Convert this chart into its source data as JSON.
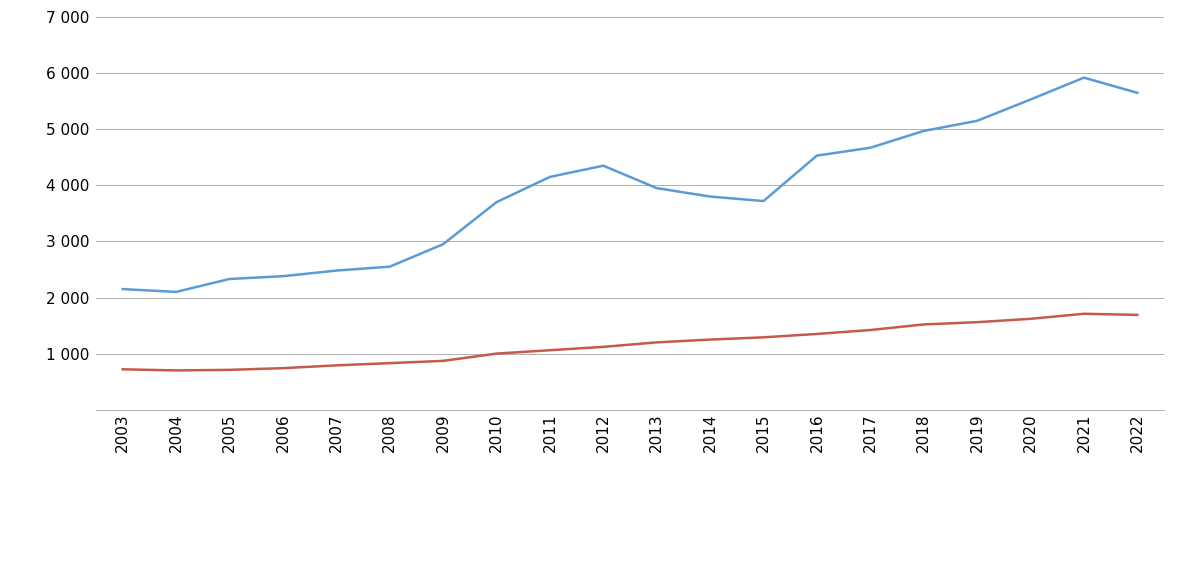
{
  "years": [
    2003,
    2004,
    2005,
    2006,
    2007,
    2008,
    2009,
    2010,
    2011,
    2012,
    2013,
    2014,
    2015,
    2016,
    2017,
    2018,
    2019,
    2020,
    2021,
    2022
  ],
  "barnevern": [
    2150,
    2100,
    2330,
    2380,
    2480,
    2550,
    2950,
    3700,
    4150,
    4350,
    3950,
    3800,
    3720,
    4530,
    4670,
    4970,
    5150,
    5530,
    5920,
    5650
  ],
  "fosterheim": [
    720,
    700,
    710,
    740,
    790,
    830,
    870,
    1000,
    1060,
    1120,
    1200,
    1250,
    1290,
    1350,
    1420,
    1520,
    1560,
    1620,
    1710,
    1690
  ],
  "barnevern_color": "#5B9BD5",
  "fosterheim_color": "#C55A4A",
  "ylim": [
    0,
    7000
  ],
  "yticks": [
    0,
    1000,
    2000,
    3000,
    4000,
    5000,
    6000,
    7000
  ],
  "ytick_labels": [
    "",
    "1 000",
    "2 000",
    "3 000",
    "4 000",
    "5 000",
    "6 000",
    "7 000"
  ],
  "line_width": 1.8,
  "background_color": "#ffffff",
  "grid_color": "#b0b0b0",
  "tick_fontsize": 11,
  "legend_fontsize": 11
}
